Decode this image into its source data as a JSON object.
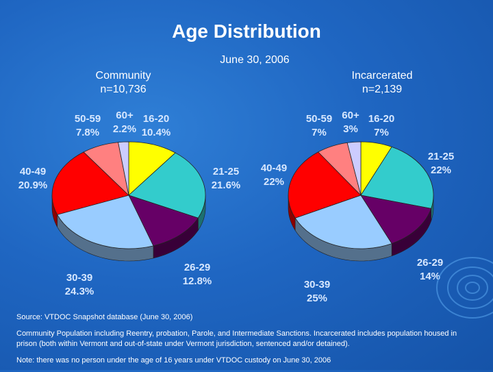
{
  "title": "Age Distribution",
  "subtitle": "June 30, 2006",
  "colors": {
    "16-20": "#ffff00",
    "21-25": "#33cccc",
    "26-29": "#660066",
    "30-39": "#99ccff",
    "40-49": "#ff0000",
    "50-59": "#ff8080",
    "60+": "#ccccff"
  },
  "chart_data": [
    {
      "type": "pie",
      "title": "Community",
      "subtitle": "n=10,736",
      "categories": [
        "16-20",
        "21-25",
        "26-29",
        "30-39",
        "40-49",
        "50-59",
        "60+"
      ],
      "values": [
        10.4,
        21.6,
        12.8,
        24.3,
        20.9,
        7.8,
        2.2
      ],
      "value_labels": [
        "10.4%",
        "21.6%",
        "12.8%",
        "24.3%",
        "20.9%",
        "7.8%",
        "2.2%"
      ]
    },
    {
      "type": "pie",
      "title": "Incarcerated",
      "subtitle": "n=2,139",
      "categories": [
        "16-20",
        "21-25",
        "26-29",
        "30-39",
        "40-49",
        "50-59",
        "60+"
      ],
      "values": [
        7,
        22,
        14,
        25,
        22,
        7,
        3
      ],
      "value_labels": [
        "7%",
        "22%",
        "14%",
        "25%",
        "22%",
        "7%",
        "3%"
      ]
    }
  ],
  "notes": {
    "source": "Source: VTDOC Snapshot database (June 30, 2006)",
    "definition": "Community Population including Reentry, probation, Parole, and Intermediate Sanctions. Incarcerated includes population housed in prison (both within Vermont and out-of-state under Vermont jurisdiction, sentenced and/or detained).",
    "note": "Note: there was no person under the age of 16 years under VTDOC custody on June 30, 2006"
  }
}
